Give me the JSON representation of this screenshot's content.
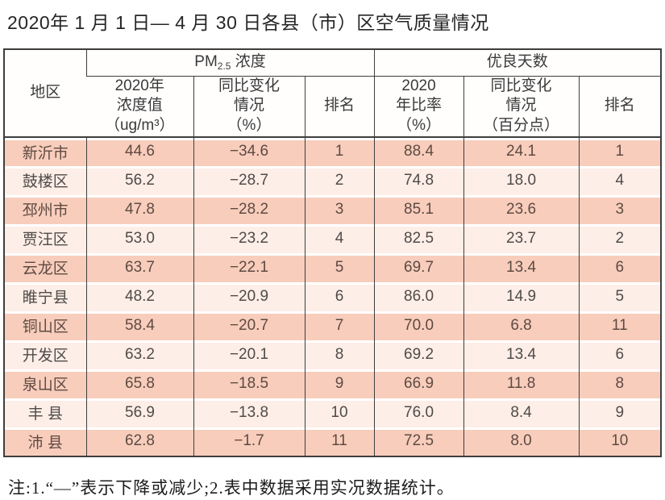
{
  "page": {
    "title": "2020年 1 月 1 日— 4 月 30 日各县（市）区空气质量情况",
    "footnote": "注:1.“—”表示下降或减少;2.表中数据采用实况数据统计。"
  },
  "colors": {
    "stripe_dark": "#f8cdbc",
    "stripe_light": "#fdeee7",
    "table_border": "#3e3e3e"
  },
  "table": {
    "header": {
      "region": "地区",
      "pm_group_prefix": "PM",
      "pm_group_sub": "2.5",
      "pm_group_suffix": " 浓度",
      "good_days_group": "优良天数",
      "col_concentration": "2020年\n浓度值\n（ug/m³）",
      "col_pm_yoy": "同比变化\n情况\n（%）",
      "col_pm_rank": "排名",
      "col_ratio": "2020\n年比率\n（%）",
      "col_days_yoy": "同比变化\n情况\n（百分点）",
      "col_days_rank": "排名"
    },
    "rows": [
      {
        "region": "新沂市",
        "pm_value": "44.6",
        "pm_yoy": "−34.6",
        "pm_rank": "1",
        "ratio": "88.4",
        "days_yoy": "24.1",
        "days_rank": "1"
      },
      {
        "region": "鼓楼区",
        "pm_value": "56.2",
        "pm_yoy": "−28.7",
        "pm_rank": "2",
        "ratio": "74.8",
        "days_yoy": "18.0",
        "days_rank": "4"
      },
      {
        "region": "邳州市",
        "pm_value": "47.8",
        "pm_yoy": "−28.2",
        "pm_rank": "3",
        "ratio": "85.1",
        "days_yoy": "23.6",
        "days_rank": "3"
      },
      {
        "region": "贾汪区",
        "pm_value": "53.0",
        "pm_yoy": "−23.2",
        "pm_rank": "4",
        "ratio": "82.5",
        "days_yoy": "23.7",
        "days_rank": "2"
      },
      {
        "region": "云龙区",
        "pm_value": "63.7",
        "pm_yoy": "−22.1",
        "pm_rank": "5",
        "ratio": "69.7",
        "days_yoy": "13.4",
        "days_rank": "6"
      },
      {
        "region": "睢宁县",
        "pm_value": "48.2",
        "pm_yoy": "−20.9",
        "pm_rank": "6",
        "ratio": "86.0",
        "days_yoy": "14.9",
        "days_rank": "5"
      },
      {
        "region": "铜山区",
        "pm_value": "58.4",
        "pm_yoy": "−20.7",
        "pm_rank": "7",
        "ratio": "70.0",
        "days_yoy": "6.8",
        "days_rank": "11"
      },
      {
        "region": "开发区",
        "pm_value": "63.2",
        "pm_yoy": "−20.1",
        "pm_rank": "8",
        "ratio": "69.2",
        "days_yoy": "13.4",
        "days_rank": "6"
      },
      {
        "region": "泉山区",
        "pm_value": "65.8",
        "pm_yoy": "−18.5",
        "pm_rank": "9",
        "ratio": "66.9",
        "days_yoy": "11.8",
        "days_rank": "8"
      },
      {
        "region": "丰 县",
        "pm_value": "56.9",
        "pm_yoy": "−13.8",
        "pm_rank": "10",
        "ratio": "76.0",
        "days_yoy": "8.4",
        "days_rank": "9"
      },
      {
        "region": "沛 县",
        "pm_value": "62.8",
        "pm_yoy": "−1.7",
        "pm_rank": "11",
        "ratio": "72.5",
        "days_yoy": "8.0",
        "days_rank": "10"
      }
    ]
  }
}
